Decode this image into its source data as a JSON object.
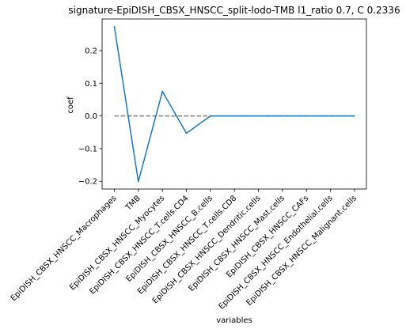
{
  "chart_data": {
    "type": "line",
    "title": "signature-EpiDISH_CBSX_HNSCC_split-lodo-TMB l1_ratio 0.7, C 0.2336",
    "xlabel": "variables",
    "ylabel": "coef",
    "categories": [
      "EpiDISH_CBSX_HNSCC_Macrophages",
      "TMB",
      "EpiDISH_CBSX_HNSCC_Myocytes",
      "EpiDISH_CBSX_HNSCC_T.cells.CD4",
      "EpiDISH_CBSX_HNSCC_B.cells",
      "EpiDISH_CBSX_HNSCC_T.cells.CD8",
      "EpiDISH_CBSX_HNSCC_Dendritic.cells",
      "EpiDISH_CBSX_HNSCC_Mast.cells",
      "EpiDISH_CBSX_HNSCC_CAFs",
      "EpiDISH_CBSX_HNSCC_Endothelial.cells",
      "EpiDISH_CBSX_HNSCC_Malignant.cells"
    ],
    "series": [
      {
        "values": [
          0.273,
          -0.201,
          0.075,
          -0.053,
          0.0,
          0.0,
          0.0,
          0.0,
          0.0,
          0.0,
          0.0
        ],
        "color": "#1f77b4"
      }
    ],
    "reference_line": {
      "y": 0.0,
      "style": "dashed",
      "color": "#808080"
    },
    "yticks": [
      -0.2,
      -0.1,
      0.0,
      0.1,
      0.2
    ],
    "ytick_labels": [
      "−0.2",
      "−0.1",
      "0.0",
      "0.1",
      "0.2"
    ],
    "ylim": [
      -0.2237,
      0.2967
    ],
    "grid": false,
    "legend": "none"
  }
}
